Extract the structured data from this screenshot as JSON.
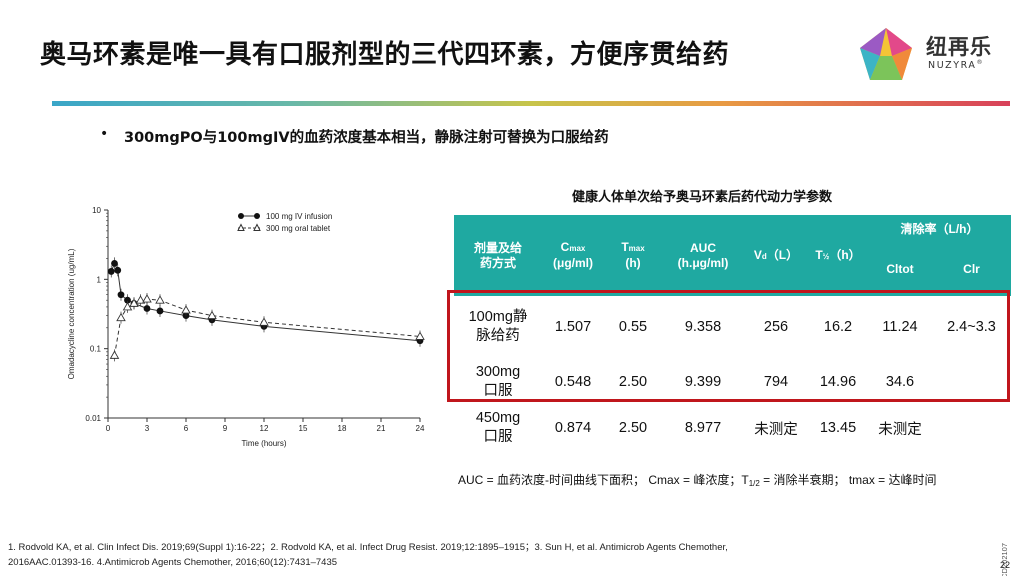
{
  "slide": {
    "title": "奥马环素是唯一具有口服剂型的三代四环素，方便序贯给药",
    "bullet_marker": "•",
    "bullet": "300mgPO与100mgIV的血药浓度基本相当，静脉注射可替换为口服给药",
    "page_number": "22",
    "doc_code": "CD202107",
    "brand_colors": {
      "teal": "#1fa9a1",
      "highlight_red": "#c0161c"
    }
  },
  "logo": {
    "name_cn": "纽再乐",
    "name_en": "NUZYRA",
    "mark_symbol": "®"
  },
  "chart_data": {
    "type": "line",
    "ylabel": "Omadacycline concentration (ug/mL)",
    "xlabel": "Time (hours)",
    "y_scale": "log",
    "ylim": [
      0.01,
      10
    ],
    "xlim": [
      0,
      24
    ],
    "x_ticks": [
      "0",
      "3",
      "6",
      "9",
      "12",
      "15",
      "18",
      "21",
      "24"
    ],
    "y_ticks": [
      "10",
      "1",
      "0.1",
      "0.01"
    ],
    "y_tick_values": [
      10,
      1,
      0.1,
      0.01
    ],
    "legend_position": "top-right",
    "series": [
      {
        "name": "100 mg IV infusion",
        "marker": "filled-circle",
        "line": "solid",
        "x": [
          0.25,
          0.5,
          0.75,
          1,
          1.5,
          2,
          3,
          4,
          6,
          8,
          12,
          24
        ],
        "y": [
          1.3,
          1.7,
          1.35,
          0.6,
          0.5,
          0.45,
          0.38,
          0.35,
          0.3,
          0.26,
          0.21,
          0.13
        ]
      },
      {
        "name": "300 mg oral tablet",
        "marker": "open-triangle",
        "line": "dashed",
        "x": [
          0.5,
          1,
          1.5,
          2,
          2.5,
          3,
          4,
          6,
          8,
          12,
          24
        ],
        "y": [
          0.08,
          0.28,
          0.4,
          0.45,
          0.5,
          0.52,
          0.5,
          0.36,
          0.3,
          0.24,
          0.15
        ]
      }
    ]
  },
  "table": {
    "title": "健康人体单次给予奥马环素后药代动力学参数",
    "header_group": "清除率（L/h）",
    "headers": [
      {
        "main": "剂量及给",
        "main2": "药方式",
        "sub": ""
      },
      {
        "main": "C",
        "sub": "max",
        "unit": "(μg/ml)"
      },
      {
        "main": "T",
        "sub": "max",
        "unit": "(h)"
      },
      {
        "main": "AUC",
        "sub": "",
        "unit": "(h.μg/ml)"
      },
      {
        "main": "V",
        "sub": "d",
        "unit": "（L）"
      },
      {
        "main": "T",
        "sub": "½",
        "unit": "（h）"
      },
      {
        "main": "Cltot",
        "sub": "",
        "unit": ""
      },
      {
        "main": "Clr",
        "sub": "",
        "unit": ""
      }
    ],
    "rows": [
      {
        "dose_line1": "100mg静",
        "dose_line2": "脉给药",
        "cmax": "1.507",
        "tmax": "0.55",
        "auc": "9.358",
        "vd": "256",
        "thalf": "16.2",
        "cltot": "11.24",
        "clr": "2.4~3.3"
      },
      {
        "dose_line1": "300mg",
        "dose_line2": "口服",
        "cmax": "0.548",
        "tmax": "2.50",
        "auc": "9.399",
        "vd": "794",
        "thalf": "14.96",
        "cltot": "34.6",
        "clr": ""
      },
      {
        "dose_line1": "450mg",
        "dose_line2": "口服",
        "cmax": "0.874",
        "tmax": "2.50",
        "auc": "8.977",
        "vd": "未测定",
        "thalf": "13.45",
        "cltot": "未测定",
        "clr": ""
      }
    ]
  },
  "footnote": {
    "p1": "AUC = 血药浓度-时间曲线下面积；  Cmax = 峰浓度；T",
    "p1_sub": "1/2",
    "p2": " = 消除半衰期；  tmax = 达峰时间"
  },
  "references": {
    "line1": "1. Rodvold  KA, et al. Clin Infect Dis. 2019;69(Suppl 1):16-22；2.  Rodvold  KA, et al. Infect Drug Resist. 2019;12:1895–1915；3.  Sun H, et al. Antimicrob Agents Chemother,",
    "line2": "2016AAC.01393-16.  4.Antimicrob Agents Chemother,  2016;60(12):7431–7435"
  }
}
